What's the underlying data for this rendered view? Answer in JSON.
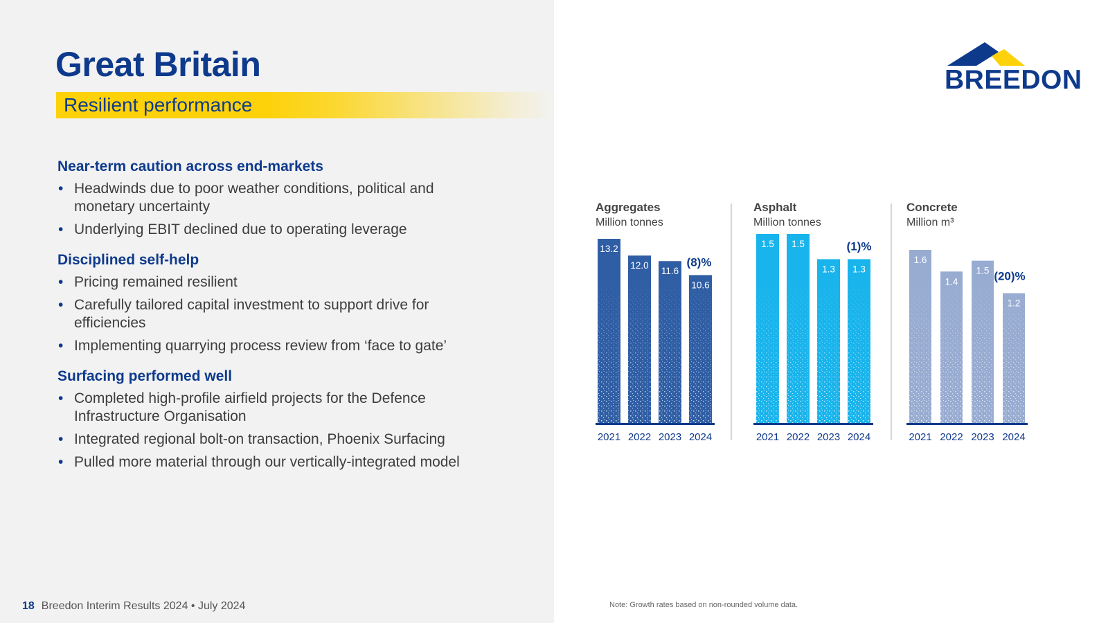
{
  "header": {
    "title": "Great Britain",
    "subtitle": "Resilient performance"
  },
  "brand": {
    "logo_text": "BREEDON",
    "primary_color": "#0e3a8c",
    "accent_color": "#fdd20a"
  },
  "sections": [
    {
      "heading": "Near-term caution across end-markets",
      "bullets": [
        "Headwinds due to poor weather conditions, political and monetary uncertainty",
        "Underlying EBIT declined due to operating leverage"
      ]
    },
    {
      "heading": "Disciplined self-help",
      "bullets": [
        "Pricing remained resilient",
        "Carefully tailored capital investment to support drive for efficiencies",
        "Implementing quarrying process review from ‘face to gate’"
      ]
    },
    {
      "heading": "Surfacing performed well",
      "bullets": [
        "Completed high-profile airfield projects for the Defence Infrastructure Organisation",
        "Integrated regional bolt-on transaction, Phoenix Surfacing",
        "Pulled more material through our vertically-integrated model"
      ]
    }
  ],
  "footer": {
    "page_number": "18",
    "text": "Breedon Interim Results 2024 • July 2024"
  },
  "note": "Note: Growth rates based on non-rounded volume data.",
  "chart_data": [
    {
      "type": "bar",
      "title": "Aggregates",
      "subtitle": "Million tonnes",
      "categories": [
        "2021",
        "2022",
        "2023",
        "2024"
      ],
      "values": [
        13.2,
        12.0,
        11.6,
        10.6
      ],
      "labels": [
        "13.2",
        "12.0",
        "11.6",
        "10.6"
      ],
      "growth": "(8)%",
      "color": "#2f5ea5"
    },
    {
      "type": "bar",
      "title": "Asphalt",
      "subtitle": "Million tonnes",
      "categories": [
        "2021",
        "2022",
        "2023",
        "2024"
      ],
      "values": [
        1.5,
        1.5,
        1.3,
        1.3
      ],
      "labels": [
        "1.5",
        "1.5",
        "1.3",
        "1.3"
      ],
      "growth": "(1)%",
      "color": "#19b4ec"
    },
    {
      "type": "bar",
      "title": "Concrete",
      "subtitle": "Million m³",
      "categories": [
        "2021",
        "2022",
        "2023",
        "2024"
      ],
      "values": [
        1.6,
        1.4,
        1.5,
        1.2
      ],
      "labels": [
        "1.6",
        "1.4",
        "1.5",
        "1.2"
      ],
      "growth": "(20)%",
      "color": "#98acd2"
    }
  ]
}
